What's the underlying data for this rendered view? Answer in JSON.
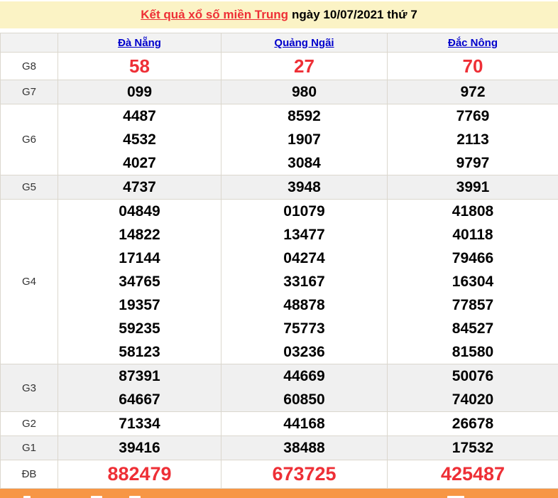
{
  "title": {
    "link_text": "Kết quả xổ số miền Trung",
    "suffix_text": "ngày 10/07/2021 thứ 7"
  },
  "table": {
    "columns": [
      "Đà Nẵng",
      "Quảng Ngãi",
      "Đắc Nông"
    ],
    "rows": [
      {
        "label": "G8",
        "values": [
          [
            "58"
          ],
          [
            "27"
          ],
          [
            "70"
          ]
        ]
      },
      {
        "label": "G7",
        "values": [
          [
            "099"
          ],
          [
            "980"
          ],
          [
            "972"
          ]
        ]
      },
      {
        "label": "G6",
        "values": [
          [
            "4487",
            "4532",
            "4027"
          ],
          [
            "8592",
            "1907",
            "3084"
          ],
          [
            "7769",
            "2113",
            "9797"
          ]
        ]
      },
      {
        "label": "G5",
        "values": [
          [
            "4737"
          ],
          [
            "3948"
          ],
          [
            "3991"
          ]
        ]
      },
      {
        "label": "G4",
        "values": [
          [
            "04849",
            "14822",
            "17144",
            "34765",
            "19357",
            "59235",
            "58123"
          ],
          [
            "01079",
            "13477",
            "04274",
            "33167",
            "48878",
            "75773",
            "03236"
          ],
          [
            "41808",
            "40118",
            "79466",
            "16304",
            "77857",
            "84527",
            "81580"
          ]
        ]
      },
      {
        "label": "G3",
        "values": [
          [
            "87391",
            "64667"
          ],
          [
            "44669",
            "60850"
          ],
          [
            "50076",
            "74020"
          ]
        ]
      },
      {
        "label": "G2",
        "values": [
          [
            "71334"
          ],
          [
            "44168"
          ],
          [
            "26678"
          ]
        ]
      },
      {
        "label": "G1",
        "values": [
          [
            "39416"
          ],
          [
            "38488"
          ],
          [
            "17532"
          ]
        ]
      },
      {
        "label": "ĐB",
        "values": [
          [
            "882479"
          ],
          [
            "673725"
          ],
          [
            "425487"
          ]
        ]
      }
    ]
  },
  "colors": {
    "accent_red": "#EE2F36",
    "link_blue": "#0000CC",
    "title_background": "#FBF3C5",
    "footer_orange": "#F79645",
    "stripe_gray": "#F0F0F0",
    "header_gray": "#F2F2F2",
    "border": "#DBD7CE"
  }
}
